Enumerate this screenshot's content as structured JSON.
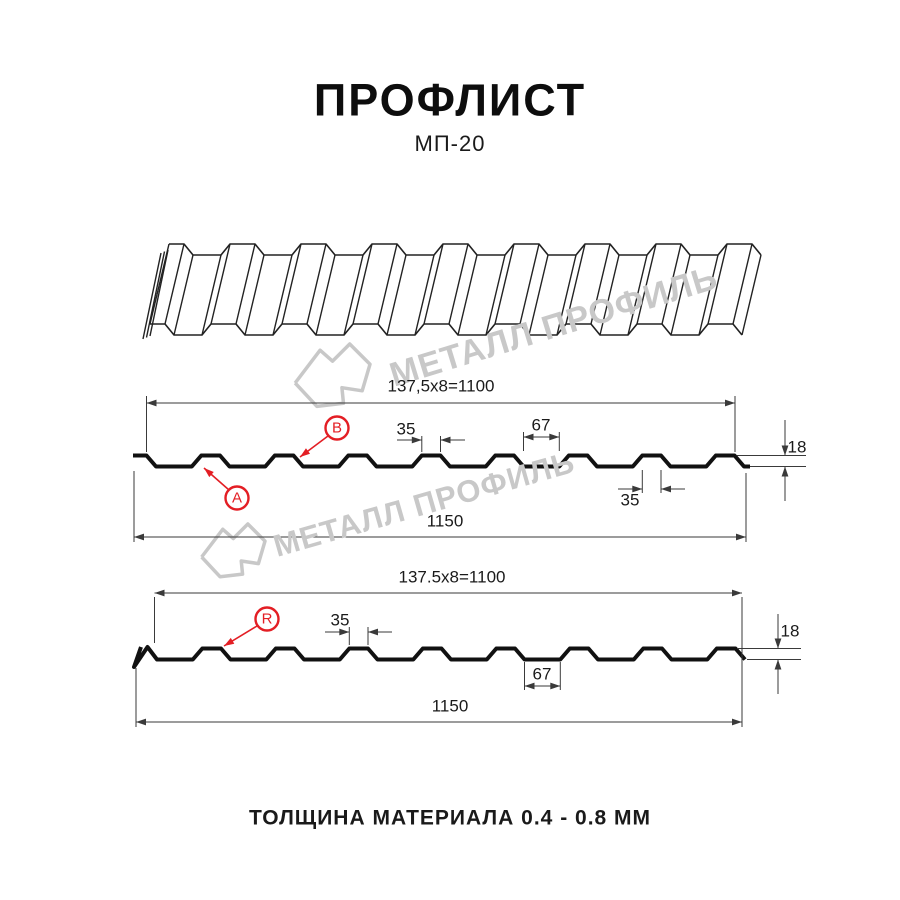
{
  "header": {
    "title": "ПРОФЛИСТ",
    "subtitle": "МП-20"
  },
  "footer": {
    "text": "ТОЛЩИНА МАТЕРИАЛА 0.4 - 0.8 ММ"
  },
  "watermark": {
    "text": "МЕТАЛЛ ПРОФИЛЬ"
  },
  "colors": {
    "accent_red": "#e31e24",
    "line": "#111111",
    "dim": "#3a3a3a",
    "watermark": "#c8c8c8"
  },
  "section_top": {
    "coverage_width": "137,5x8=1100",
    "overall_width": "1150",
    "rib_top_width": "35",
    "valley_width": "67",
    "profile_height": "18",
    "rib_bottom_width": "35",
    "marker_a": "A",
    "marker_b": "B"
  },
  "section_bottom": {
    "coverage_width": "137.5x8=1100",
    "overall_width": "1150",
    "rib_top_width": "35",
    "valley_width": "67",
    "profile_height": "18",
    "marker_r": "R"
  }
}
